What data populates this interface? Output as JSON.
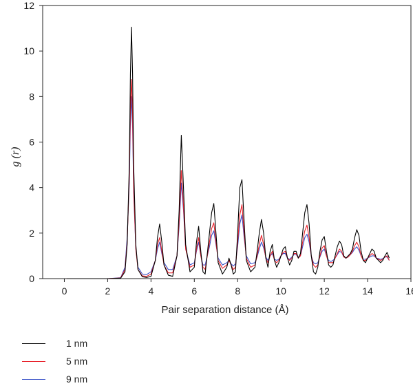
{
  "chart_data": {
    "type": "line",
    "title": "",
    "xlabel": "Pair separation distance (Å)",
    "ylabel": "g (r)",
    "xlim": [
      -1,
      16
    ],
    "ylim": [
      0,
      12
    ],
    "xticks": [
      0,
      2,
      4,
      6,
      8,
      10,
      12,
      14,
      16
    ],
    "yticks": [
      0,
      2,
      4,
      6,
      8,
      10,
      12
    ],
    "grid": false,
    "legend_position": "below-left",
    "series": [
      {
        "name": "1 nm",
        "color": "#000000",
        "x": [
          0.1,
          2.0,
          2.6,
          2.8,
          2.9,
          3.0,
          3.05,
          3.1,
          3.15,
          3.2,
          3.3,
          3.4,
          3.6,
          3.8,
          4.0,
          4.2,
          4.3,
          4.4,
          4.5,
          4.6,
          4.8,
          5.0,
          5.2,
          5.3,
          5.4,
          5.5,
          5.6,
          5.8,
          6.0,
          6.1,
          6.2,
          6.3,
          6.4,
          6.5,
          6.7,
          6.8,
          6.9,
          7.0,
          7.1,
          7.3,
          7.5,
          7.6,
          7.7,
          7.8,
          7.9,
          8.0,
          8.1,
          8.2,
          8.3,
          8.4,
          8.6,
          8.8,
          8.9,
          9.0,
          9.1,
          9.2,
          9.3,
          9.4,
          9.5,
          9.6,
          9.7,
          9.8,
          9.9,
          10.0,
          10.1,
          10.2,
          10.3,
          10.4,
          10.5,
          10.6,
          10.7,
          10.8,
          10.9,
          11.0,
          11.1,
          11.2,
          11.3,
          11.4,
          11.5,
          11.6,
          11.7,
          11.8,
          11.9,
          12.0,
          12.1,
          12.2,
          12.3,
          12.4,
          12.5,
          12.6,
          12.7,
          12.8,
          12.9,
          13.0,
          13.1,
          13.2,
          13.3,
          13.4,
          13.5,
          13.6,
          13.7,
          13.8,
          13.9,
          14.0,
          14.1,
          14.2,
          14.3,
          14.4,
          14.5,
          14.6,
          14.7,
          14.8,
          14.9,
          15.0
        ],
        "y": [
          0.0,
          0.0,
          0.02,
          0.3,
          1.5,
          5.0,
          9.0,
          11.05,
          9.0,
          5.0,
          1.5,
          0.4,
          0.08,
          0.05,
          0.1,
          0.8,
          1.8,
          2.4,
          1.6,
          0.6,
          0.15,
          0.1,
          1.0,
          3.0,
          6.3,
          4.0,
          1.5,
          0.3,
          0.5,
          1.6,
          2.3,
          1.2,
          0.3,
          0.2,
          2.0,
          2.9,
          3.3,
          2.0,
          0.7,
          0.2,
          0.5,
          0.9,
          0.6,
          0.2,
          0.3,
          2.0,
          4.0,
          4.35,
          2.5,
          0.8,
          0.3,
          0.5,
          1.2,
          2.0,
          2.6,
          2.0,
          0.9,
          0.5,
          1.2,
          1.5,
          0.8,
          0.5,
          0.7,
          1.0,
          1.3,
          1.4,
          0.9,
          0.6,
          0.8,
          1.2,
          1.2,
          0.9,
          1.1,
          2.0,
          2.9,
          3.25,
          2.4,
          1.0,
          0.3,
          0.2,
          0.5,
          1.2,
          1.7,
          1.85,
          1.2,
          0.6,
          0.5,
          0.6,
          1.0,
          1.4,
          1.65,
          1.5,
          1.0,
          0.9,
          1.0,
          1.1,
          1.3,
          1.8,
          2.15,
          1.9,
          1.2,
          0.8,
          0.7,
          0.9,
          1.1,
          1.3,
          1.2,
          0.9,
          0.8,
          0.7,
          0.8,
          1.0,
          1.15,
          0.9
        ]
      },
      {
        "name": "5 nm",
        "color": "#e8202a",
        "x": [
          0.1,
          2.0,
          2.6,
          2.8,
          2.9,
          3.0,
          3.05,
          3.1,
          3.15,
          3.2,
          3.3,
          3.4,
          3.6,
          3.8,
          4.0,
          4.2,
          4.3,
          4.4,
          4.5,
          4.6,
          4.8,
          5.0,
          5.2,
          5.3,
          5.4,
          5.5,
          5.6,
          5.8,
          6.0,
          6.1,
          6.2,
          6.3,
          6.4,
          6.5,
          6.7,
          6.8,
          6.9,
          7.0,
          7.1,
          7.3,
          7.5,
          7.6,
          7.7,
          7.8,
          7.9,
          8.0,
          8.1,
          8.2,
          8.3,
          8.4,
          8.6,
          8.8,
          8.9,
          9.0,
          9.1,
          9.2,
          9.3,
          9.4,
          9.5,
          9.6,
          9.7,
          9.8,
          9.9,
          10.0,
          10.1,
          10.2,
          10.3,
          10.4,
          10.5,
          10.6,
          10.7,
          10.8,
          10.9,
          11.0,
          11.1,
          11.2,
          11.3,
          11.4,
          11.5,
          11.6,
          11.7,
          11.8,
          11.9,
          12.0,
          12.1,
          12.2,
          12.3,
          12.4,
          12.5,
          12.6,
          12.7,
          12.8,
          12.9,
          13.0,
          13.1,
          13.2,
          13.3,
          13.4,
          13.5,
          13.6,
          13.7,
          13.8,
          13.9,
          14.0,
          14.1,
          14.2,
          14.3,
          14.4,
          14.5,
          14.6,
          14.7,
          14.8,
          14.9,
          15.0
        ],
        "y": [
          0.0,
          0.0,
          0.03,
          0.4,
          1.6,
          4.5,
          7.5,
          8.75,
          7.2,
          4.0,
          1.3,
          0.4,
          0.12,
          0.1,
          0.2,
          0.8,
          1.5,
          1.8,
          1.2,
          0.6,
          0.25,
          0.25,
          1.0,
          2.5,
          4.75,
          3.2,
          1.3,
          0.5,
          0.6,
          1.3,
          1.8,
          1.0,
          0.5,
          0.4,
          1.6,
          2.2,
          2.45,
          1.6,
          0.8,
          0.45,
          0.6,
          0.8,
          0.6,
          0.4,
          0.5,
          1.6,
          2.8,
          3.25,
          2.0,
          0.9,
          0.5,
          0.6,
          1.0,
          1.5,
          1.9,
          1.5,
          0.9,
          0.7,
          1.0,
          1.2,
          0.8,
          0.7,
          0.8,
          1.0,
          1.15,
          1.2,
          0.9,
          0.8,
          0.9,
          1.1,
          1.1,
          0.9,
          1.0,
          1.6,
          2.1,
          2.35,
          1.8,
          1.0,
          0.6,
          0.5,
          0.6,
          1.0,
          1.35,
          1.45,
          1.0,
          0.7,
          0.7,
          0.7,
          0.9,
          1.1,
          1.3,
          1.2,
          0.95,
          0.9,
          0.95,
          1.05,
          1.2,
          1.45,
          1.6,
          1.4,
          1.0,
          0.8,
          0.8,
          0.9,
          1.0,
          1.1,
          1.05,
          0.9,
          0.85,
          0.8,
          0.85,
          0.95,
          1.0,
          0.8
        ]
      },
      {
        "name": "9 nm",
        "color": "#3a52c8",
        "x": [
          0.1,
          2.0,
          2.6,
          2.8,
          2.9,
          3.0,
          3.05,
          3.1,
          3.15,
          3.2,
          3.3,
          3.4,
          3.6,
          3.8,
          4.0,
          4.2,
          4.3,
          4.4,
          4.5,
          4.6,
          4.8,
          5.0,
          5.2,
          5.3,
          5.4,
          5.5,
          5.6,
          5.8,
          6.0,
          6.1,
          6.2,
          6.3,
          6.4,
          6.5,
          6.7,
          6.8,
          6.9,
          7.0,
          7.1,
          7.3,
          7.5,
          7.6,
          7.7,
          7.8,
          7.9,
          8.0,
          8.1,
          8.2,
          8.3,
          8.4,
          8.6,
          8.8,
          8.9,
          9.0,
          9.1,
          9.2,
          9.3,
          9.4,
          9.5,
          9.6,
          9.7,
          9.8,
          9.9,
          10.0,
          10.1,
          10.2,
          10.3,
          10.4,
          10.5,
          10.6,
          10.7,
          10.8,
          10.9,
          11.0,
          11.1,
          11.2,
          11.3,
          11.4,
          11.5,
          11.6,
          11.7,
          11.8,
          11.9,
          12.0,
          12.1,
          12.2,
          12.3,
          12.4,
          12.5,
          12.6,
          12.7,
          12.8,
          12.9,
          13.0,
          13.1,
          13.2,
          13.3,
          13.4,
          13.5,
          13.6,
          13.7,
          13.8,
          13.9,
          14.0,
          14.1,
          14.2,
          14.3,
          14.4,
          14.5,
          14.6,
          14.7,
          14.8,
          14.9,
          15.0
        ],
        "y": [
          0.0,
          0.0,
          0.04,
          0.5,
          1.8,
          4.2,
          6.8,
          8.0,
          6.6,
          3.8,
          1.3,
          0.5,
          0.2,
          0.18,
          0.3,
          0.8,
          1.3,
          1.6,
          1.1,
          0.7,
          0.4,
          0.4,
          1.0,
          2.3,
          4.2,
          3.0,
          1.3,
          0.6,
          0.7,
          1.2,
          1.6,
          1.0,
          0.6,
          0.6,
          1.4,
          1.9,
          2.1,
          1.5,
          0.9,
          0.6,
          0.7,
          0.8,
          0.65,
          0.55,
          0.65,
          1.4,
          2.4,
          2.8,
          1.8,
          1.0,
          0.65,
          0.7,
          0.95,
          1.3,
          1.6,
          1.35,
          0.95,
          0.8,
          1.0,
          1.1,
          0.85,
          0.8,
          0.85,
          1.0,
          1.1,
          1.1,
          0.9,
          0.85,
          0.95,
          1.05,
          1.05,
          0.95,
          1.0,
          1.4,
          1.8,
          1.95,
          1.6,
          1.0,
          0.7,
          0.65,
          0.7,
          0.95,
          1.2,
          1.3,
          1.0,
          0.8,
          0.75,
          0.8,
          0.9,
          1.05,
          1.2,
          1.15,
          0.95,
          0.9,
          0.95,
          1.05,
          1.15,
          1.3,
          1.4,
          1.25,
          1.0,
          0.85,
          0.85,
          0.9,
          0.95,
          1.0,
          1.0,
          0.9,
          0.88,
          0.85,
          0.88,
          0.95,
          0.95,
          0.8
        ]
      }
    ]
  }
}
